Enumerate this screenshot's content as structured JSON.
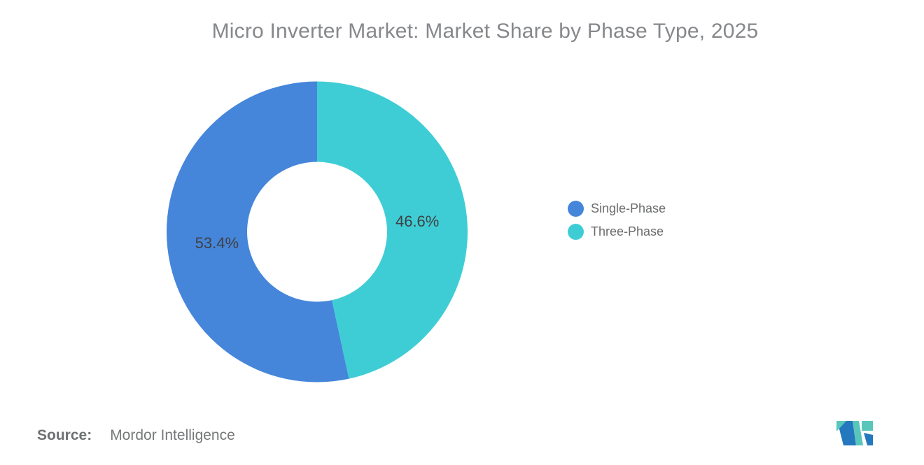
{
  "title": "Micro Inverter Market: Market Share by Phase Type, 2025",
  "chart_data": {
    "type": "pie",
    "subtype": "donut",
    "title": "Micro Inverter Market: Market Share by Phase Type, 2025",
    "segments": [
      {
        "label": "Single-Phase",
        "value": 53.4,
        "display": "53.4%",
        "color": "#4586DB"
      },
      {
        "label": "Three-Phase",
        "value": 46.6,
        "display": "46.6%",
        "color": "#3FCDD5"
      }
    ],
    "start_angle": "12-oclock",
    "winding": "counterclockwise",
    "inner_radius_ratio": 0.465,
    "labels": "percent-inside-slices",
    "legend_position": "right"
  },
  "legend": {
    "items": [
      {
        "label": "Single-Phase",
        "color": "#4586DB"
      },
      {
        "label": "Three-Phase",
        "color": "#3FCDD5"
      }
    ]
  },
  "source": {
    "label": "Source:",
    "text": "Mordor Intelligence"
  },
  "logo": {
    "name": "mordor-intelligence-logo",
    "colors": {
      "blue": "#2478BD",
      "teal": "#59C6BB"
    }
  }
}
